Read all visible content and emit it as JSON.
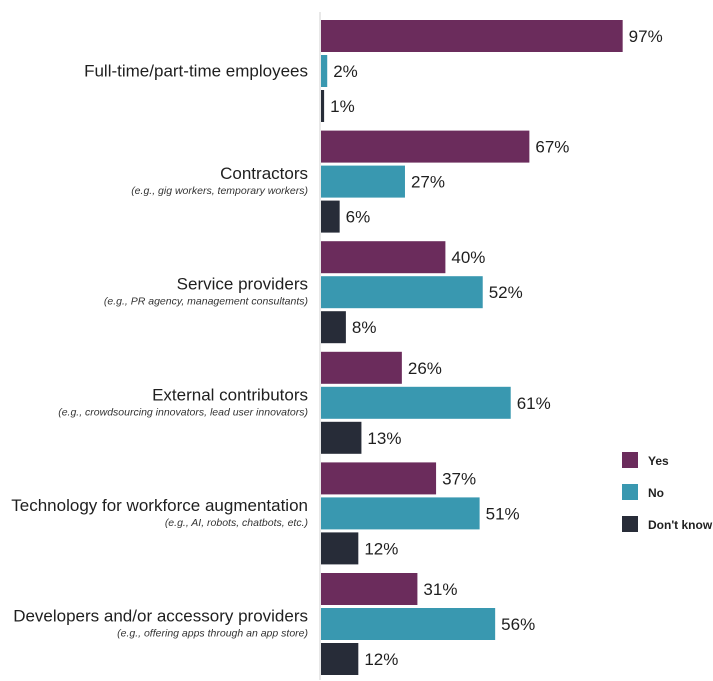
{
  "chart_data": {
    "type": "bar",
    "orientation": "horizontal",
    "categories": [
      {
        "label": "Full-time/part-time employees",
        "sublabel": ""
      },
      {
        "label": "Contractors",
        "sublabel": "(e.g., gig workers, temporary workers)"
      },
      {
        "label": "Service providers",
        "sublabel": "(e.g., PR agency, management consultants)"
      },
      {
        "label": "External contributors",
        "sublabel": "(e.g., crowdsourcing innovators, lead user innovators)"
      },
      {
        "label": "Technology for workforce augmentation",
        "sublabel": "(e.g., AI, robots, chatbots, etc.)"
      },
      {
        "label": "Developers and/or accessory providers",
        "sublabel": "(e.g., offering apps through an app store)"
      }
    ],
    "series": [
      {
        "name": "Yes",
        "color": "#6b2c5c",
        "values": [
          97,
          67,
          40,
          26,
          37,
          31
        ]
      },
      {
        "name": "No",
        "color": "#3998b0",
        "values": [
          2,
          27,
          52,
          61,
          51,
          56
        ]
      },
      {
        "name": "Don't know",
        "color": "#272c38",
        "values": [
          1,
          6,
          8,
          13,
          12,
          12
        ]
      }
    ],
    "value_suffix": "%",
    "xlim": [
      0,
      100
    ],
    "grid": false,
    "legend_position": "right"
  }
}
